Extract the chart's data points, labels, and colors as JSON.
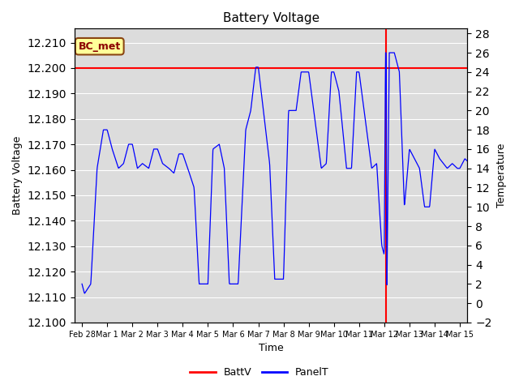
{
  "title": "Battery Voltage",
  "xlabel": "Time",
  "ylabel_left": "Battery Voltage",
  "ylabel_right": "Temperature",
  "annotation_text": "BC_met",
  "batt_v_constant": 12.2,
  "ylim_left": [
    12.1,
    12.2155
  ],
  "ylim_right": [
    -2,
    28.5
  ],
  "yticks_left": [
    12.1,
    12.11,
    12.12,
    12.13,
    12.14,
    12.15,
    12.16,
    12.17,
    12.18,
    12.19,
    12.2,
    12.21
  ],
  "yticks_right": [
    -2,
    0,
    2,
    4,
    6,
    8,
    10,
    12,
    14,
    16,
    18,
    20,
    22,
    24,
    26,
    28
  ],
  "batt_color": "#ff0000",
  "panel_color": "#0000ff",
  "bg_color": "#dcdcdc",
  "grid_color": "#ffffff",
  "annotation_bg": "#ffff99",
  "annotation_border": "#8b4513",
  "annotation_text_color": "#8b0000",
  "vertical_line_x": 12.08,
  "x_start": -0.3,
  "x_end": 15.3,
  "xtick_positions": [
    0,
    1,
    2,
    3,
    4,
    5,
    6,
    7,
    8,
    9,
    10,
    11,
    12,
    13,
    14,
    15
  ],
  "xtick_labels": [
    "Feb 28",
    "Mar 1",
    "Mar 2",
    "Mar 3",
    "Mar 4",
    "Mar 5",
    "Mar 6",
    "Mar 7",
    "Mar 8",
    "Mar 9",
    "Mar 10",
    "Mar 11",
    "Mar 12",
    "Mar 13",
    "Mar 14",
    "Mar 15"
  ]
}
